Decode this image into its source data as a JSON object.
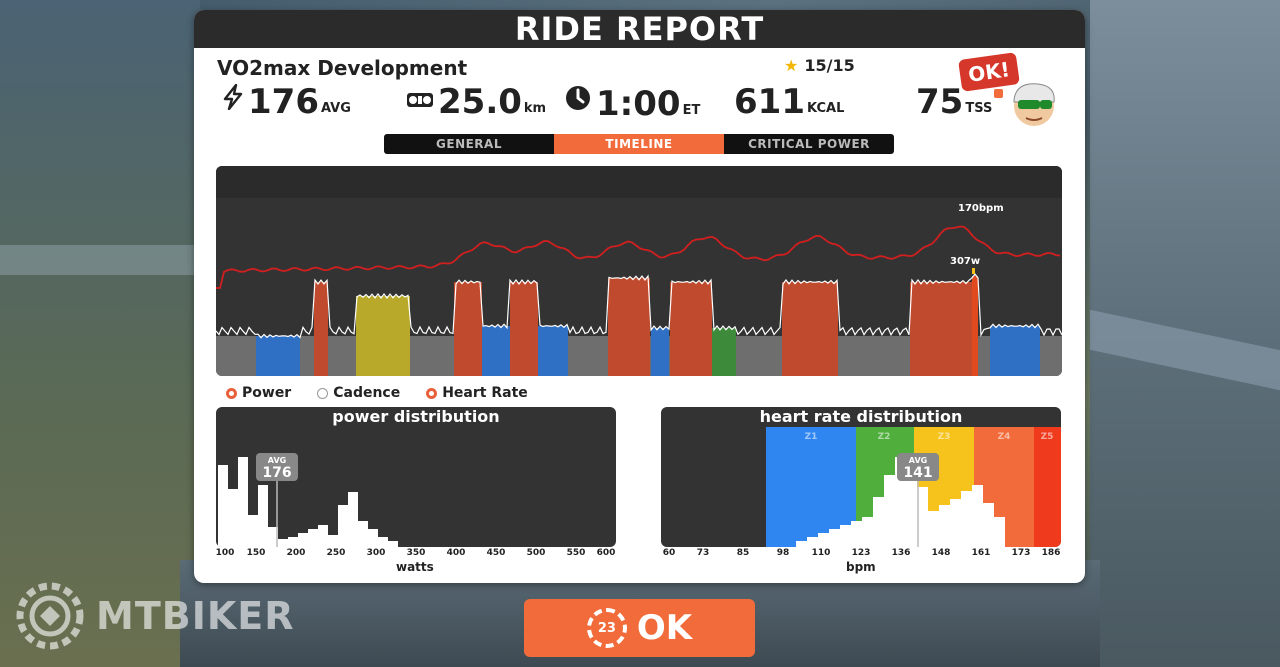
{
  "header": {
    "title": "RIDE REPORT"
  },
  "workout": {
    "name": "VO2max Development",
    "stars": "15/15"
  },
  "stats": {
    "power": {
      "value": "176",
      "unit": "AVG",
      "icon": "lightning-icon"
    },
    "distance": {
      "value": "25.0",
      "unit": "km",
      "icon": "bike-icon"
    },
    "time": {
      "value": "1:00",
      "unit": "ET",
      "icon": "clock-icon"
    },
    "energy": {
      "value": "611",
      "unit": "KCAL"
    },
    "tss": {
      "value": "75",
      "unit": "TSS"
    }
  },
  "ok_badge": "OK!",
  "tabs": [
    {
      "label": "GENERAL"
    },
    {
      "label": "TIMELINE"
    },
    {
      "label": "CRITICAL POWER"
    }
  ],
  "timeline": {
    "hr_peak_label": "170bpm",
    "power_peak_label": "307w"
  },
  "legend": [
    {
      "label": "Power"
    },
    {
      "label": "Cadence"
    },
    {
      "label": "Heart Rate"
    }
  ],
  "power_distribution": {
    "title": "power distribution",
    "avg_label": "AVG",
    "avg_value": "176",
    "ticks": [
      "100",
      "150",
      "200",
      "250",
      "300",
      "350",
      "400",
      "450",
      "500",
      "550",
      "600"
    ],
    "xlabel": "watts"
  },
  "hr_distribution": {
    "title": "heart rate distribution",
    "avg_label": "AVG",
    "avg_value": "141",
    "zones": [
      "Z1",
      "Z2",
      "Z3",
      "Z4",
      "Z5"
    ],
    "ticks": [
      "60",
      "73",
      "85",
      "98",
      "110",
      "123",
      "136",
      "148",
      "161",
      "173",
      "186"
    ],
    "xlabel": "bpm"
  },
  "ok_button": {
    "label": "OK",
    "countdown": "23"
  },
  "brand": {
    "name": "MTBIKER"
  },
  "colors": {
    "accent": "#f26b3a",
    "hr_line": "#d11f1f",
    "z1": "#2f86f0",
    "z2": "#4fae3c",
    "z3": "#f6c21c",
    "z4": "#f26b3a",
    "z5": "#f03a1e"
  }
}
